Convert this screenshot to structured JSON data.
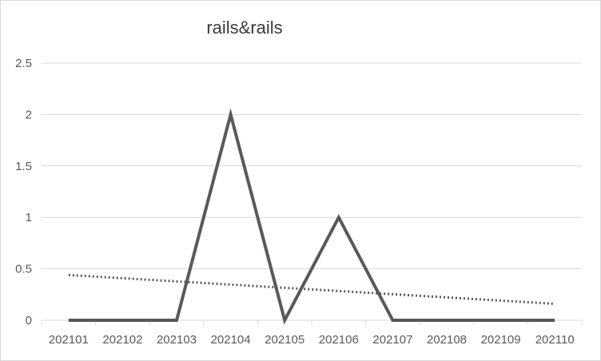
{
  "chart_data": {
    "type": "line",
    "title": "rails&rails",
    "categories": [
      "202101",
      "202102",
      "202103",
      "202104",
      "202105",
      "202106",
      "202107",
      "202108",
      "202109",
      "202110"
    ],
    "series": [
      {
        "values": [
          0,
          0,
          0,
          2,
          0,
          1,
          0,
          0,
          0,
          0
        ],
        "color": "#595959"
      }
    ],
    "trendline": {
      "type": "linear",
      "start": 0.44,
      "end": 0.16,
      "style": "dotted",
      "color": "#595959"
    },
    "yticks": [
      "0",
      "0.5",
      "1",
      "1.5",
      "2",
      "2.5"
    ],
    "ylim": [
      0,
      2.5
    ],
    "grid": true,
    "legend": "none"
  }
}
